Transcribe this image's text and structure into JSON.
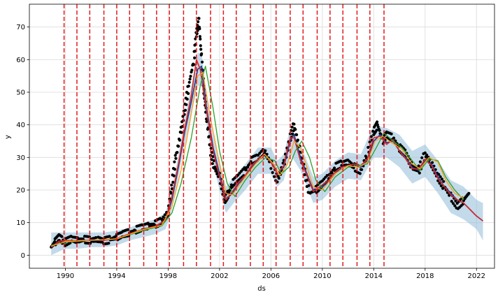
{
  "chart_data": {
    "type": "line",
    "title": "",
    "xlabel": "ds",
    "ylabel": "y",
    "xlim": [
      1987.2,
      2023.4
    ],
    "ylim": [
      -4,
      77
    ],
    "x_ticks": [
      1990,
      1994,
      1998,
      2002,
      2006,
      2010,
      2014,
      2018,
      2022
    ],
    "x_tick_labels": [
      "1990",
      "1994",
      "1998",
      "2002",
      "2006",
      "2010",
      "2014",
      "2018",
      "2022"
    ],
    "y_ticks": [
      0,
      10,
      20,
      30,
      40,
      50,
      60,
      70
    ],
    "y_tick_labels": [
      "0",
      "10",
      "20",
      "30",
      "40",
      "50",
      "60",
      "70"
    ],
    "grid": true,
    "changepoints": [
      1989.9,
      1990.9,
      1991.9,
      1993.0,
      1994.0,
      1995.0,
      1996.1,
      1997.1,
      1998.1,
      1999.2,
      2000.2,
      2001.3,
      2002.3,
      2003.3,
      2004.4,
      2005.4,
      2006.4,
      2007.5,
      2008.5,
      2009.6,
      2010.6,
      2011.6,
      2012.7,
      2013.7,
      2014.8
    ],
    "changepoint_color": "#e41a1c",
    "observed": {
      "color": "#000000",
      "x": [
        1988.9,
        1989.2,
        1989.5,
        1989.8,
        1990.0,
        1990.5,
        1991.0,
        1991.5,
        1992.0,
        1992.5,
        1993.0,
        1993.5,
        1994.0,
        1994.5,
        1995.0,
        1995.5,
        1996.0,
        1996.5,
        1997.0,
        1997.5,
        1998.0,
        1998.3,
        1998.6,
        1999.0,
        1999.3,
        1999.6,
        2000.0,
        2000.2,
        2000.4,
        2000.6,
        2000.8,
        2001.0,
        2001.3,
        2001.6,
        2002.0,
        2002.4,
        2002.7,
        2003.0,
        2003.5,
        2004.0,
        2004.5,
        2005.0,
        2005.5,
        2006.0,
        2006.5,
        2007.0,
        2007.5,
        2007.8,
        2008.2,
        2008.6,
        2009.0,
        2009.5,
        2010.0,
        2010.5,
        2011.0,
        2011.5,
        2012.0,
        2012.5,
        2013.0,
        2013.5,
        2014.0,
        2014.3,
        2014.7,
        2015.0,
        2015.5,
        2016.0,
        2016.5,
        2017.0,
        2017.5,
        2018.0,
        2018.5,
        2019.0,
        2019.5,
        2020.0,
        2020.5,
        2021.0,
        2021.4
      ],
      "y": [
        2.5,
        4.0,
        5.5,
        4.5,
        4.0,
        5.0,
        4.5,
        4.8,
        4.6,
        4.9,
        4.4,
        4.8,
        5.5,
        6.5,
        7.0,
        7.8,
        8.5,
        9.0,
        9.5,
        10.5,
        13.0,
        22.0,
        30.0,
        38.0,
        45.0,
        52.0,
        60.0,
        68.0,
        72.0,
        60.0,
        50.0,
        42.0,
        32.0,
        27.0,
        24.0,
        17.0,
        19.0,
        22.0,
        24.0,
        26.0,
        29.0,
        30.0,
        32.0,
        28.0,
        23.0,
        28.0,
        36.0,
        40.0,
        33.0,
        26.0,
        19.0,
        20.0,
        22.0,
        24.0,
        27.0,
        28.0,
        28.5,
        27.0,
        26.0,
        31.0,
        38.0,
        40.0,
        35.0,
        37.0,
        36.0,
        33.0,
        31.0,
        27.0,
        26.0,
        31.0,
        28.0,
        24.0,
        21.0,
        18.0,
        15.0,
        17.0,
        19.0
      ]
    },
    "series": [
      {
        "color": "#1f3a93",
        "x": [
          1988.9,
          1989.5,
          1990.0,
          1991.0,
          1992.0,
          1993.0,
          1994.0,
          1995.0,
          1996.0,
          1997.0,
          1997.8,
          1998.3,
          1998.8,
          1999.3,
          1999.8,
          2000.3,
          2000.6,
          2001.0,
          2001.5,
          2002.0,
          2002.5,
          2003.0,
          2003.5,
          2004.0,
          2004.5,
          2005.0,
          2005.5,
          2006.0,
          2006.5,
          2007.0,
          2007.5,
          2007.8,
          2008.3,
          2008.8,
          2009.3,
          2009.8,
          2010.5,
          2011.0,
          2011.5,
          2012.0,
          2012.5,
          2013.0,
          2013.5,
          2014.0,
          2014.5,
          2015.0,
          2015.5,
          2016.0,
          2016.5,
          2017.0,
          2017.5,
          2018.0,
          2018.5,
          2019.0,
          2019.5,
          2020.0,
          2020.5,
          2021.0,
          2021.5,
          2022.0,
          2022.5
        ],
        "y": [
          2.5,
          4.2,
          4.4,
          4.5,
          4.6,
          4.6,
          5.0,
          6.5,
          7.8,
          8.8,
          10.5,
          17.0,
          27.0,
          38.0,
          47.0,
          57.0,
          58.0,
          45.0,
          33.0,
          25.0,
          17.0,
          19.0,
          22.0,
          24.0,
          27.0,
          29.0,
          31.0,
          29.0,
          25.0,
          27.0,
          35.0,
          37.0,
          30.0,
          25.0,
          20.0,
          20.5,
          22.5,
          25.0,
          27.0,
          27.5,
          28.0,
          27.0,
          29.0,
          35.0,
          37.0,
          34.5,
          35.0,
          32.0,
          30.0,
          27.0,
          26.0,
          29.0,
          28.0,
          24.0,
          21.0,
          19.0,
          17.0,
          16.0,
          14.0,
          12.0,
          10.5
        ]
      },
      {
        "color": "#d62728",
        "x": [
          1988.9,
          1989.5,
          1990.0,
          1991.0,
          1992.0,
          1993.0,
          1994.0,
          1995.0,
          1996.0,
          1997.0,
          1997.8,
          1998.3,
          1998.8,
          1999.3,
          1999.8,
          2000.2,
          2000.5,
          2001.0,
          2001.5,
          2002.0,
          2002.5,
          2003.0,
          2003.5,
          2004.0,
          2004.5,
          2005.0,
          2005.5,
          2006.0,
          2006.5,
          2007.0,
          2007.5,
          2007.8,
          2008.3,
          2008.8,
          2009.3,
          2009.8,
          2010.5,
          2011.0,
          2011.5,
          2012.0,
          2012.5,
          2013.0,
          2013.5,
          2014.0,
          2014.5,
          2015.0,
          2015.5,
          2016.0,
          2016.5,
          2017.0,
          2017.5,
          2018.0,
          2018.5,
          2019.0,
          2019.5,
          2020.0,
          2020.5,
          2021.0,
          2021.5,
          2022.0,
          2022.5
        ],
        "y": [
          2.5,
          4.3,
          4.5,
          4.5,
          4.7,
          4.6,
          5.1,
          6.6,
          7.9,
          8.9,
          10.8,
          18.0,
          28.0,
          39.0,
          49.0,
          60.0,
          57.0,
          44.0,
          32.0,
          24.0,
          17.0,
          19.5,
          22.5,
          24.5,
          27.5,
          29.5,
          31.0,
          28.5,
          25.0,
          27.5,
          36.0,
          36.0,
          29.0,
          24.5,
          19.5,
          21.0,
          23.0,
          25.5,
          27.0,
          27.5,
          28.0,
          27.5,
          29.5,
          36.0,
          36.5,
          34.0,
          35.5,
          32.0,
          29.5,
          26.5,
          26.5,
          29.5,
          27.5,
          23.5,
          21.0,
          18.5,
          17.0,
          16.0,
          14.0,
          12.0,
          10.5
        ]
      },
      {
        "color": "#2ca02c",
        "x": [
          1988.9,
          1990.0,
          1992.0,
          1994.0,
          1996.0,
          1997.5,
          1998.3,
          1999.0,
          1999.8,
          2000.5,
          2000.9,
          2001.5,
          2002.0,
          2002.6,
          2003.2,
          2004.0,
          2004.8,
          2005.6,
          2006.3,
          2006.8,
          2007.4,
          2007.9,
          2008.4,
          2009.0,
          2009.5,
          2010.2,
          2011.0,
          2012.0,
          2012.8,
          2013.5,
          2014.2,
          2014.8,
          2015.5,
          2016.2,
          2017.0,
          2017.6,
          2018.3,
          2019.0,
          2019.6,
          2020.3,
          2021.0
        ],
        "y": [
          3.0,
          4.0,
          4.6,
          5.0,
          7.5,
          9.0,
          13.0,
          22.0,
          36.0,
          52.0,
          58.0,
          45.0,
          32.0,
          22.0,
          18.0,
          23.0,
          27.0,
          30.0,
          29.0,
          25.0,
          27.0,
          32.0,
          35.0,
          30.0,
          23.0,
          19.5,
          24.0,
          27.0,
          27.5,
          28.0,
          33.0,
          37.5,
          35.0,
          33.0,
          29.0,
          26.0,
          29.5,
          29.0,
          24.0,
          20.0,
          17.0
        ]
      },
      {
        "color": "#ff9f1c",
        "x": [
          1988.9,
          1990.0,
          1992.0,
          1994.0,
          1996.0,
          1997.5,
          1998.3,
          1999.0,
          1999.7,
          2000.3,
          2000.7,
          2001.3,
          2002.0,
          2002.5,
          2003.0,
          2004.0,
          2004.8,
          2005.5,
          2006.2,
          2006.7,
          2007.3,
          2007.8,
          2008.3,
          2008.8,
          2009.3,
          2010.0,
          2011.0,
          2012.0,
          2012.8,
          2013.5,
          2014.1,
          2014.7,
          2015.4,
          2016.2,
          2017.0,
          2017.6,
          2018.3,
          2019.0,
          2019.6,
          2020.3,
          2021.0
        ],
        "y": [
          2.8,
          4.2,
          4.6,
          5.0,
          7.8,
          9.2,
          15.0,
          26.0,
          41.0,
          55.0,
          56.0,
          42.0,
          28.0,
          19.0,
          18.5,
          24.0,
          28.0,
          31.0,
          28.0,
          24.5,
          28.0,
          35.0,
          33.0,
          27.0,
          21.0,
          20.0,
          25.0,
          27.5,
          27.0,
          28.5,
          35.0,
          36.5,
          34.5,
          32.5,
          28.0,
          26.5,
          30.0,
          28.5,
          23.0,
          19.0,
          17.5
        ]
      }
    ],
    "uncertainty": {
      "color": "#8fbbd9",
      "x": [
        1988.9,
        1990.0,
        1991.0,
        1992.0,
        1993.0,
        1994.0,
        1995.0,
        1996.0,
        1997.0,
        1997.8,
        1998.3,
        1998.8,
        1999.3,
        1999.8,
        2000.3,
        2000.6,
        2001.0,
        2001.5,
        2002.0,
        2002.5,
        2003.0,
        2004.0,
        2005.0,
        2006.0,
        2006.5,
        2007.0,
        2007.5,
        2008.3,
        2009.3,
        2010.0,
        2011.0,
        2012.0,
        2013.0,
        2014.0,
        2015.0,
        2016.0,
        2017.0,
        2018.0,
        2019.0,
        2020.0,
        2021.0,
        2022.0,
        2022.5
      ],
      "lower": [
        0.0,
        2.0,
        2.0,
        2.5,
        2.5,
        3.0,
        4.5,
        5.5,
        6.5,
        8.0,
        14.0,
        24.0,
        34.0,
        43.0,
        52.0,
        52.0,
        40.0,
        28.0,
        20.0,
        13.0,
        15.5,
        20.0,
        25.0,
        25.0,
        21.0,
        23.0,
        31.0,
        26.0,
        16.0,
        17.0,
        21.0,
        23.5,
        23.0,
        30.0,
        30.0,
        27.0,
        22.0,
        24.0,
        19.0,
        13.0,
        11.0,
        8.0,
        4.5
      ],
      "upper": [
        7.0,
        7.0,
        7.0,
        7.0,
        7.0,
        7.5,
        8.5,
        10.0,
        11.0,
        13.0,
        20.0,
        31.0,
        42.0,
        52.0,
        62.0,
        62.0,
        49.0,
        37.0,
        29.0,
        21.0,
        23.5,
        28.0,
        33.0,
        33.0,
        29.0,
        31.0,
        39.0,
        34.0,
        24.0,
        25.0,
        29.0,
        31.5,
        31.0,
        40.0,
        39.0,
        37.0,
        32.0,
        34.0,
        29.0,
        23.0,
        21.0,
        17.0,
        16.0
      ]
    }
  }
}
